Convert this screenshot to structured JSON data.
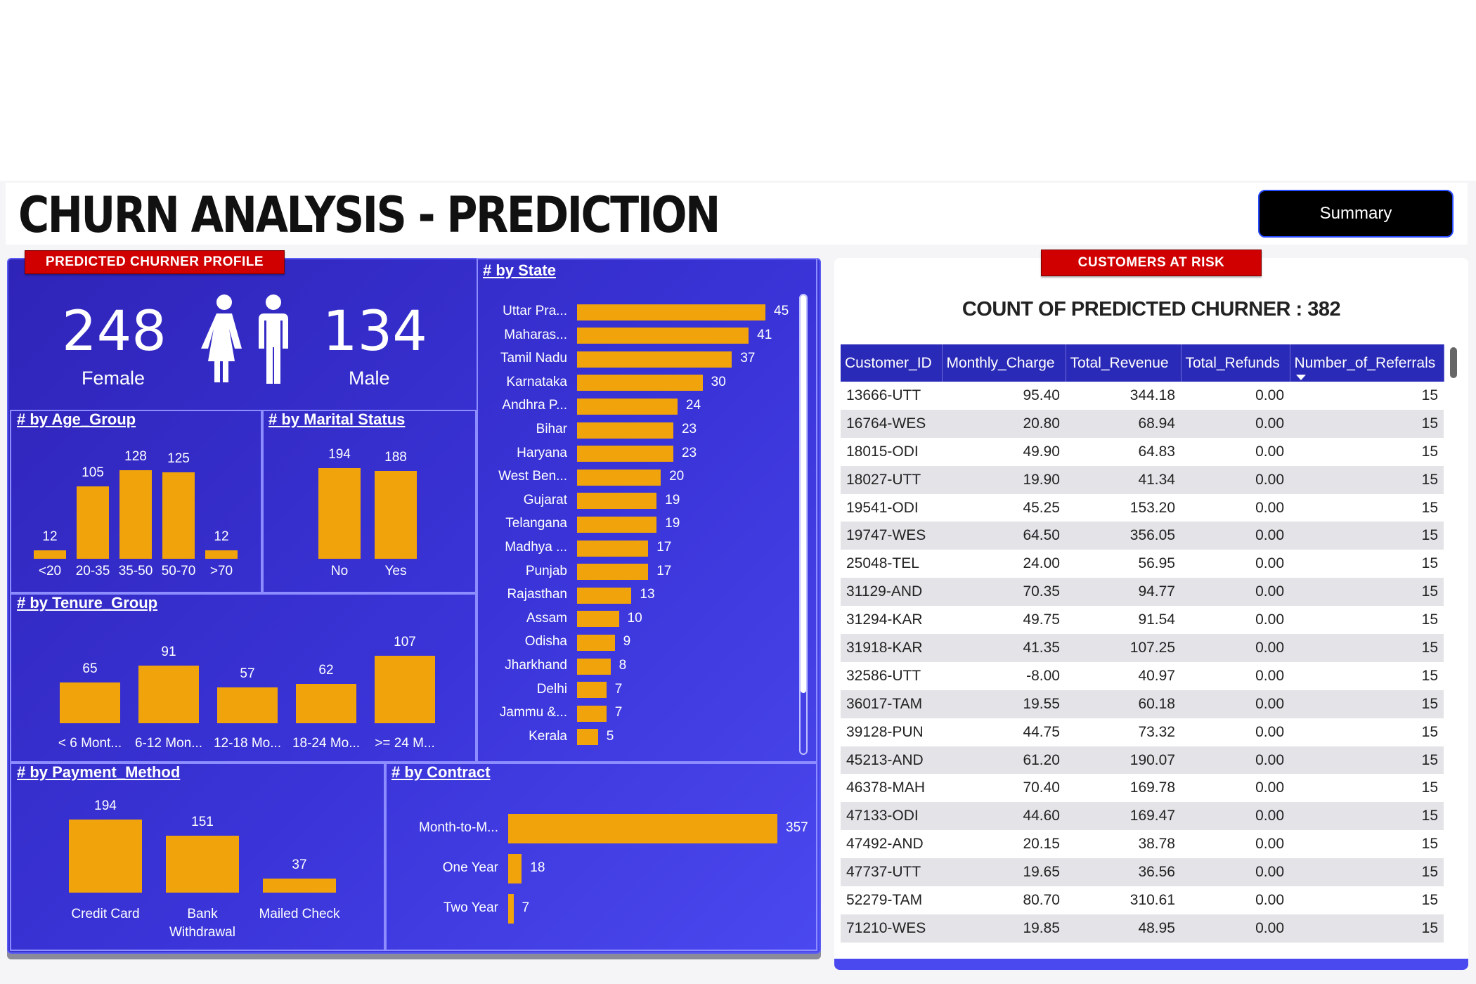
{
  "header": {
    "title": "CHURN ANALYSIS - PREDICTION",
    "summary_button": "Summary"
  },
  "left_panel": {
    "ribbon": "PREDICTED CHURNER PROFILE",
    "gender": {
      "female_count": "248",
      "female_label": "Female",
      "male_count": "134",
      "male_label": "Male",
      "icon": "female-male-icon"
    }
  },
  "right_panel": {
    "ribbon": "CUSTOMERS AT RISK",
    "count_title": "COUNT OF PREDICTED CHURNER : 382"
  },
  "colors": {
    "bar": "#f0a30a",
    "panel": "#3a34d8",
    "ribbon": "#d00000",
    "table_header": "#2a2ab8"
  },
  "chart_data": [
    {
      "id": "age",
      "type": "bar",
      "title": "# by Age_Group",
      "categories": [
        "<20",
        "20-35",
        "35-50",
        "50-70",
        ">70"
      ],
      "values": [
        12,
        105,
        128,
        125,
        12
      ]
    },
    {
      "id": "marital",
      "type": "bar",
      "title": "# by Marital Status",
      "categories": [
        "No",
        "Yes"
      ],
      "values": [
        194,
        188
      ]
    },
    {
      "id": "tenure",
      "type": "bar",
      "title": "# by Tenure_Group",
      "categories": [
        "< 6 Mont...",
        "6-12 Mon...",
        "12-18 Mo...",
        "18-24 Mo...",
        ">= 24 M..."
      ],
      "values": [
        65,
        91,
        57,
        62,
        107
      ]
    },
    {
      "id": "payment",
      "type": "bar",
      "title": "# by Payment_Method",
      "categories": [
        "Credit Card",
        "Bank Withdrawal",
        "Mailed Check"
      ],
      "values": [
        194,
        151,
        37
      ]
    },
    {
      "id": "state",
      "type": "bar",
      "orientation": "horizontal",
      "title": "# by State",
      "categories": [
        "Uttar Pra...",
        "Maharas...",
        "Tamil Nadu",
        "Karnataka",
        "Andhra P...",
        "Bihar",
        "Haryana",
        "West Ben...",
        "Gujarat",
        "Telangana",
        "Madhya ...",
        "Punjab",
        "Rajasthan",
        "Assam",
        "Odisha",
        "Jharkhand",
        "Delhi",
        "Jammu &...",
        "Kerala"
      ],
      "values": [
        45,
        41,
        37,
        30,
        24,
        23,
        23,
        20,
        19,
        19,
        17,
        17,
        13,
        10,
        9,
        8,
        7,
        7,
        5
      ]
    },
    {
      "id": "contract",
      "type": "bar",
      "orientation": "horizontal",
      "title": "# by Contract",
      "categories": [
        "Month-to-M...",
        "One Year",
        "Two Year"
      ],
      "values": [
        357,
        18,
        7
      ]
    }
  ],
  "table": {
    "columns": [
      "Customer_ID",
      "Monthly_Charge",
      "Total_Revenue",
      "Total_Refunds",
      "Number_of_Referrals"
    ],
    "rows": [
      [
        "13666-UTT",
        "95.40",
        "344.18",
        "0.00",
        "15"
      ],
      [
        "16764-WES",
        "20.80",
        "68.94",
        "0.00",
        "15"
      ],
      [
        "18015-ODI",
        "49.90",
        "64.83",
        "0.00",
        "15"
      ],
      [
        "18027-UTT",
        "19.90",
        "41.34",
        "0.00",
        "15"
      ],
      [
        "19541-ODI",
        "45.25",
        "153.20",
        "0.00",
        "15"
      ],
      [
        "19747-WES",
        "64.50",
        "356.05",
        "0.00",
        "15"
      ],
      [
        "25048-TEL",
        "24.00",
        "56.95",
        "0.00",
        "15"
      ],
      [
        "31129-AND",
        "70.35",
        "94.77",
        "0.00",
        "15"
      ],
      [
        "31294-KAR",
        "49.75",
        "91.54",
        "0.00",
        "15"
      ],
      [
        "31918-KAR",
        "41.35",
        "107.25",
        "0.00",
        "15"
      ],
      [
        "32586-UTT",
        "-8.00",
        "40.97",
        "0.00",
        "15"
      ],
      [
        "36017-TAM",
        "19.55",
        "60.18",
        "0.00",
        "15"
      ],
      [
        "39128-PUN",
        "44.75",
        "73.32",
        "0.00",
        "15"
      ],
      [
        "45213-AND",
        "61.20",
        "190.07",
        "0.00",
        "15"
      ],
      [
        "46378-MAH",
        "70.40",
        "169.78",
        "0.00",
        "15"
      ],
      [
        "47133-ODI",
        "44.60",
        "169.47",
        "0.00",
        "15"
      ],
      [
        "47492-AND",
        "20.15",
        "38.78",
        "0.00",
        "15"
      ],
      [
        "47737-UTT",
        "19.65",
        "36.56",
        "0.00",
        "15"
      ],
      [
        "52279-TAM",
        "80.70",
        "310.61",
        "0.00",
        "15"
      ],
      [
        "71210-WES",
        "19.85",
        "48.95",
        "0.00",
        "15"
      ]
    ]
  }
}
